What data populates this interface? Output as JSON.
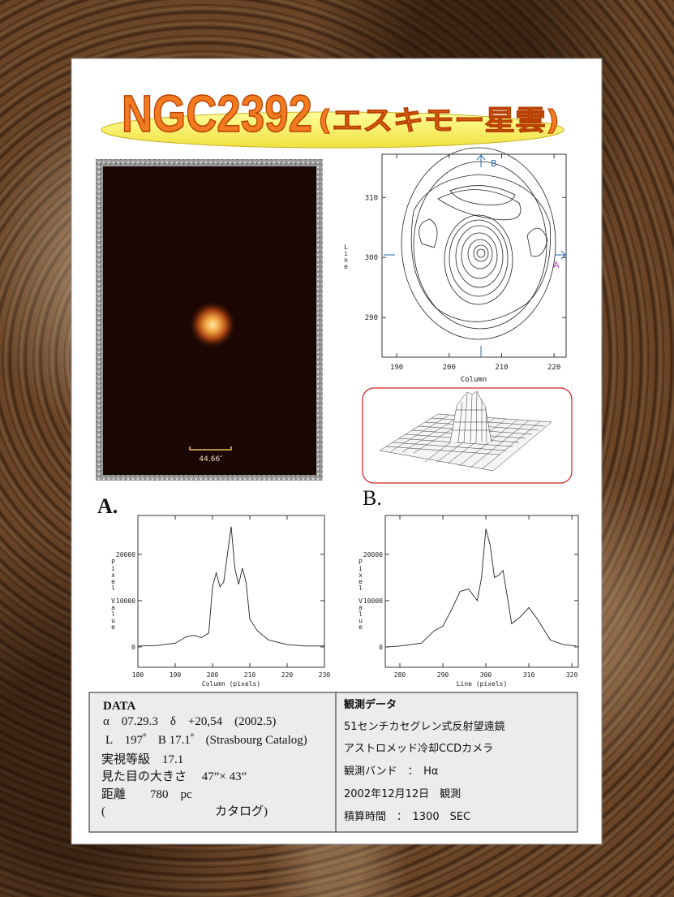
{
  "title": {
    "main": "NGC2392",
    "sub": "(エスキモー星雲)"
  },
  "image": {
    "scale_label": "44.66″"
  },
  "contour": {
    "x_label": "Column",
    "y_label": "Line",
    "xlim": [
      187.2,
      222.3
    ],
    "ylim": [
      283.4,
      317.2
    ],
    "xticks": [
      190,
      200,
      210,
      220
    ],
    "yticks": [
      290,
      300,
      310
    ],
    "marker_top": "B",
    "marker_right": "A"
  },
  "panel_labels": [
    "A.",
    "B."
  ],
  "chart_data": [
    {
      "type": "line",
      "x_label": "Column (pixels)",
      "y_label": "Pixel Value",
      "color": "#222222",
      "xlim": [
        180,
        230
      ],
      "ylim": [
        -4400,
        28400
      ],
      "xticks": [
        180,
        190,
        200,
        210,
        220,
        230
      ],
      "yticks": [
        0,
        10000,
        20000
      ],
      "x": [
        180,
        185,
        190,
        193,
        195,
        197,
        199,
        200,
        201,
        202,
        203,
        204,
        205,
        206,
        207,
        208,
        209,
        210,
        212,
        215,
        220,
        225,
        230
      ],
      "values": [
        200,
        300,
        800,
        2200,
        2500,
        2000,
        3000,
        13000,
        16000,
        13000,
        14000,
        20000,
        26000,
        17000,
        13500,
        17000,
        14000,
        6000,
        3500,
        1500,
        500,
        200,
        200
      ]
    },
    {
      "type": "line",
      "x_label": "Line (pixels)",
      "y_label": "Pixel Value",
      "color": "#222222",
      "xlim": [
        276.6,
        321.5
      ],
      "ylim": [
        -4400,
        28400
      ],
      "xticks": [
        280,
        290,
        300,
        310,
        320
      ],
      "yticks": [
        0,
        10000,
        20000
      ],
      "x": [
        277,
        280,
        285,
        288,
        290,
        292,
        294,
        296,
        298,
        299,
        300,
        301,
        302,
        303,
        304,
        306,
        308,
        310,
        312,
        315,
        318,
        321
      ],
      "values": [
        0,
        200,
        800,
        3500,
        4500,
        8000,
        12000,
        12500,
        10000,
        15000,
        25500,
        22000,
        15000,
        15500,
        16500,
        5000,
        6500,
        8500,
        6000,
        1500,
        500,
        200
      ]
    }
  ],
  "table": {
    "left": {
      "heading": "DATA",
      "rows": [
        "α　07.29.3　δ　+20,54　(2002.5)",
        "L　197゜ B 17.1゜ (Strasbourg Catalog)",
        "実視等級　17.1",
        "見た目の大きさ　 47”× 43”",
        "距離　　780　pc",
        "(　　　　　　　　　カタログ)"
      ]
    },
    "right": {
      "heading": "観測データ",
      "rows": [
        "51センチカセグレン式反射望遠鏡",
        "アストロメッド冷却CCDカメラ",
        "観測バンド　：　Hα",
        "2002年12月12日　観測",
        "積算時間　：　1300　SEC"
      ]
    }
  }
}
